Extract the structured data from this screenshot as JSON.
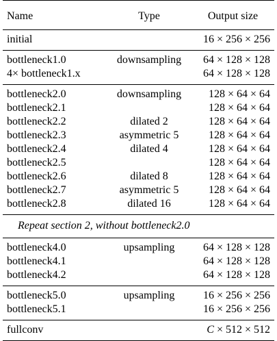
{
  "table": {
    "headers": [
      "Name",
      "Type",
      "Output size"
    ],
    "groups": [
      [
        {
          "name": "initial",
          "type": "",
          "size": "16 × 256 × 256"
        }
      ],
      [
        {
          "name": "bottleneck1.0",
          "type": "downsampling",
          "size": "64 × 128 × 128"
        },
        {
          "name": "4× bottleneck1.x",
          "type": "",
          "size": "64 × 128 × 128"
        }
      ],
      [
        {
          "name": "bottleneck2.0",
          "type": "downsampling",
          "size": "128 × 64 × 64"
        },
        {
          "name": "bottleneck2.1",
          "type": "",
          "size": "128 × 64 × 64"
        },
        {
          "name": "bottleneck2.2",
          "type": "dilated 2",
          "size": "128 × 64 × 64"
        },
        {
          "name": "bottleneck2.3",
          "type": "asymmetric 5",
          "size": "128 × 64 × 64"
        },
        {
          "name": "bottleneck2.4",
          "type": "dilated 4",
          "size": "128 × 64 × 64"
        },
        {
          "name": "bottleneck2.5",
          "type": "",
          "size": "128 × 64 × 64"
        },
        {
          "name": "bottleneck2.6",
          "type": "dilated 8",
          "size": "128 × 64 × 64"
        },
        {
          "name": "bottleneck2.7",
          "type": "asymmetric 5",
          "size": "128 × 64 × 64"
        },
        {
          "name": "bottleneck2.8",
          "type": "dilated 16",
          "size": "128 × 64 × 64"
        }
      ],
      [
        {
          "name": "bottleneck4.0",
          "type": "upsampling",
          "size": "64 × 128 × 128"
        },
        {
          "name": "bottleneck4.1",
          "type": "",
          "size": "64 × 128 × 128"
        },
        {
          "name": "bottleneck4.2",
          "type": "",
          "size": "64 × 128 × 128"
        }
      ],
      [
        {
          "name": "bottleneck5.0",
          "type": "upsampling",
          "size": "16 × 256 × 256"
        },
        {
          "name": "bottleneck5.1",
          "type": "",
          "size": "16 × 256 × 256"
        }
      ],
      [
        {
          "name": "fullconv",
          "type": "",
          "size_var": "C",
          "size": " × 512 × 512"
        }
      ]
    ],
    "note": "Repeat section 2, without bottleneck2.0"
  }
}
